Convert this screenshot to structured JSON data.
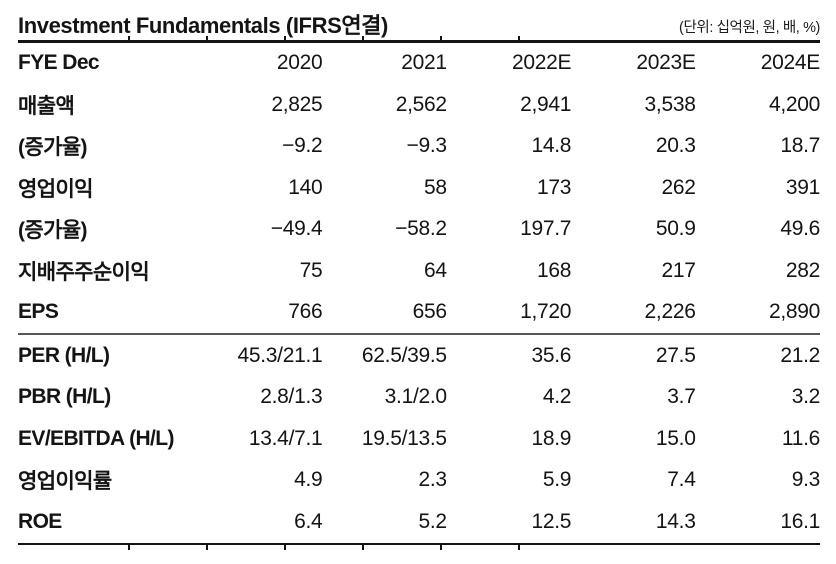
{
  "header": {
    "title": "Investment Fundamentals (IFRS연결)",
    "unit_note": "(단위: 십억원, 원, 배, %)"
  },
  "table": {
    "header": {
      "label": "FYE Dec",
      "years": [
        "2020",
        "2021",
        "2022E",
        "2023E",
        "2024E"
      ]
    },
    "rows_top": [
      {
        "label": "매출액",
        "values": [
          "2,825",
          "2,562",
          "2,941",
          "3,538",
          "4,200"
        ]
      },
      {
        "label": "(증가율)",
        "values": [
          "−9.2",
          "−9.3",
          "14.8",
          "20.3",
          "18.7"
        ]
      },
      {
        "label": "영업이익",
        "values": [
          "140",
          "58",
          "173",
          "262",
          "391"
        ]
      },
      {
        "label": "(증가율)",
        "values": [
          "−49.4",
          "−58.2",
          "197.7",
          "50.9",
          "49.6"
        ]
      },
      {
        "label": "지배주주순이익",
        "values": [
          "75",
          "64",
          "168",
          "217",
          "282"
        ]
      },
      {
        "label": "EPS",
        "values": [
          "766",
          "656",
          "1,720",
          "2,226",
          "2,890"
        ]
      }
    ],
    "rows_bottom": [
      {
        "label": "PER (H/L)",
        "values": [
          "45.3/21.1",
          "62.5/39.5",
          "35.6",
          "27.5",
          "21.2"
        ]
      },
      {
        "label": "PBR (H/L)",
        "values": [
          "2.8/1.3",
          "3.1/2.0",
          "4.2",
          "3.7",
          "3.2"
        ]
      },
      {
        "label": "EV/EBITDA (H/L)",
        "values": [
          "13.4/7.1",
          "19.5/13.5",
          "18.9",
          "15.0",
          "11.6"
        ]
      },
      {
        "label": "영업이익률",
        "values": [
          "4.9",
          "2.3",
          "5.9",
          "7.4",
          "9.3"
        ]
      },
      {
        "label": "ROE",
        "values": [
          "6.4",
          "5.2",
          "12.5",
          "14.3",
          "16.1"
        ]
      }
    ]
  }
}
